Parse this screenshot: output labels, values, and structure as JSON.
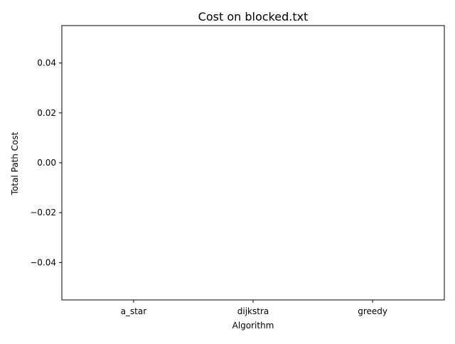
{
  "chart_data": {
    "type": "bar",
    "title": "Cost on blocked.txt",
    "xlabel": "Algorithm",
    "ylabel": "Total Path Cost",
    "categories": [
      "a_star",
      "dijkstra",
      "greedy"
    ],
    "values": [
      0,
      0,
      0
    ],
    "ylim": [
      -0.055,
      0.055
    ],
    "yticks": [
      -0.04,
      -0.02,
      0.0,
      0.02,
      0.04
    ],
    "ytick_labels": [
      "−0.04",
      "−0.02",
      "0.00",
      "0.02",
      "0.04"
    ],
    "grid": false,
    "legend": "none",
    "colors": {
      "bar": "#1f77b4",
      "axis": "#000000",
      "background": "#ffffff"
    }
  }
}
